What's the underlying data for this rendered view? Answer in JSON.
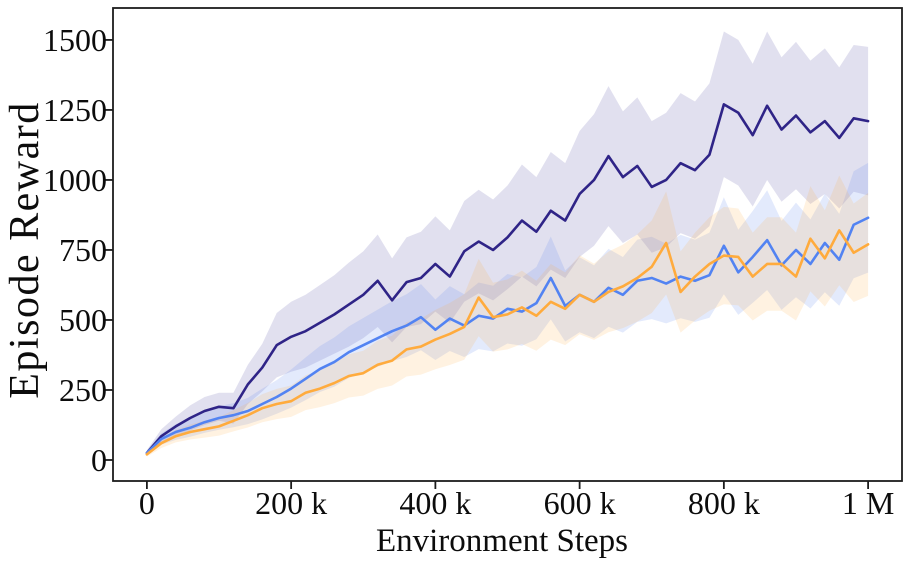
{
  "chart_data": {
    "type": "line",
    "title": "",
    "xlabel": "Environment Steps",
    "ylabel": "Episode Reward",
    "x_unit": "thousand steps",
    "xlim_k": [
      -47,
      1047
    ],
    "ylim": [
      -75,
      1614
    ],
    "grid": false,
    "legend_position": "none",
    "x_tick_values_k": [
      0,
      200,
      400,
      600,
      800,
      1000
    ],
    "x_tick_labels": [
      "0",
      "200 k",
      "400 k",
      "600 k",
      "800 k",
      "1 M"
    ],
    "y_tick_values": [
      0,
      250,
      500,
      750,
      1000,
      1250,
      1500
    ],
    "y_tick_labels": [
      "0",
      "250",
      "500",
      "750",
      "1000",
      "1250",
      "1500"
    ],
    "x": [
      0,
      20,
      40,
      60,
      80,
      100,
      120,
      140,
      160,
      180,
      200,
      220,
      240,
      260,
      280,
      300,
      320,
      340,
      360,
      380,
      400,
      420,
      440,
      460,
      480,
      500,
      520,
      540,
      560,
      580,
      600,
      620,
      640,
      660,
      680,
      700,
      720,
      740,
      760,
      780,
      800,
      820,
      840,
      860,
      880,
      900,
      920,
      940,
      960,
      980,
      1000
    ],
    "series": [
      {
        "name": "dark-navy-run",
        "color": "#2f2487",
        "band_color": "rgba(78,70,160,0.17)",
        "values": [
          25,
          85,
          120,
          150,
          175,
          190,
          185,
          270,
          330,
          410,
          440,
          460,
          490,
          520,
          555,
          590,
          640,
          570,
          635,
          650,
          700,
          655,
          745,
          780,
          750,
          795,
          855,
          815,
          890,
          855,
          950,
          1000,
          1085,
          1010,
          1050,
          975,
          1000,
          1060,
          1035,
          1090,
          1270,
          1240,
          1160,
          1265,
          1180,
          1230,
          1170,
          1210,
          1150,
          1220,
          1210
        ],
        "band_spread": [
          10,
          25,
          35,
          45,
          50,
          50,
          55,
          70,
          85,
          115,
          125,
          130,
          135,
          140,
          150,
          155,
          165,
          150,
          160,
          165,
          170,
          165,
          180,
          185,
          180,
          185,
          200,
          195,
          210,
          205,
          225,
          235,
          250,
          235,
          245,
          235,
          240,
          250,
          245,
          255,
          260,
          260,
          255,
          265,
          258,
          263,
          256,
          260,
          252,
          262,
          265
        ]
      },
      {
        "name": "cornflower-blue-run",
        "color": "#5283f2",
        "band_color": "rgba(100,140,240,0.18)",
        "values": [
          25,
          75,
          100,
          115,
          135,
          150,
          160,
          175,
          200,
          225,
          255,
          290,
          325,
          350,
          385,
          410,
          435,
          460,
          480,
          510,
          465,
          505,
          480,
          515,
          505,
          540,
          530,
          560,
          650,
          550,
          590,
          565,
          615,
          590,
          640,
          650,
          630,
          655,
          640,
          660,
          765,
          670,
          725,
          785,
          695,
          750,
          700,
          775,
          715,
          840,
          865
        ],
        "band_spread": [
          10,
          20,
          28,
          32,
          38,
          42,
          43,
          47,
          55,
          60,
          68,
          76,
          82,
          88,
          92,
          97,
          102,
          107,
          112,
          118,
          108,
          116,
          112,
          119,
          117,
          124,
          122,
          129,
          148,
          127,
          134,
          130,
          139,
          135,
          147,
          147,
          142,
          149,
          147,
          152,
          173,
          152,
          164,
          178,
          159,
          169,
          159,
          176,
          164,
          191,
          196
        ]
      },
      {
        "name": "orange-run",
        "color": "#ffab3d",
        "band_color": "rgba(255,175,70,0.16)",
        "values": [
          20,
          60,
          85,
          100,
          110,
          120,
          140,
          160,
          185,
          200,
          210,
          240,
          255,
          275,
          300,
          310,
          340,
          355,
          395,
          405,
          430,
          450,
          475,
          580,
          510,
          520,
          545,
          515,
          565,
          540,
          590,
          565,
          600,
          620,
          650,
          690,
          775,
          600,
          655,
          700,
          730,
          725,
          655,
          700,
          700,
          655,
          790,
          720,
          820,
          740,
          770
        ],
        "band_spread": [
          8,
          17,
          22,
          27,
          30,
          33,
          38,
          44,
          50,
          54,
          56,
          62,
          66,
          72,
          77,
          80,
          86,
          89,
          97,
          100,
          106,
          111,
          117,
          138,
          123,
          125,
          131,
          125,
          135,
          130,
          141,
          136,
          144,
          149,
          156,
          165,
          184,
          145,
          157,
          167,
          174,
          173,
          157,
          167,
          167,
          157,
          188,
          172,
          196,
          176,
          184
        ]
      }
    ]
  }
}
